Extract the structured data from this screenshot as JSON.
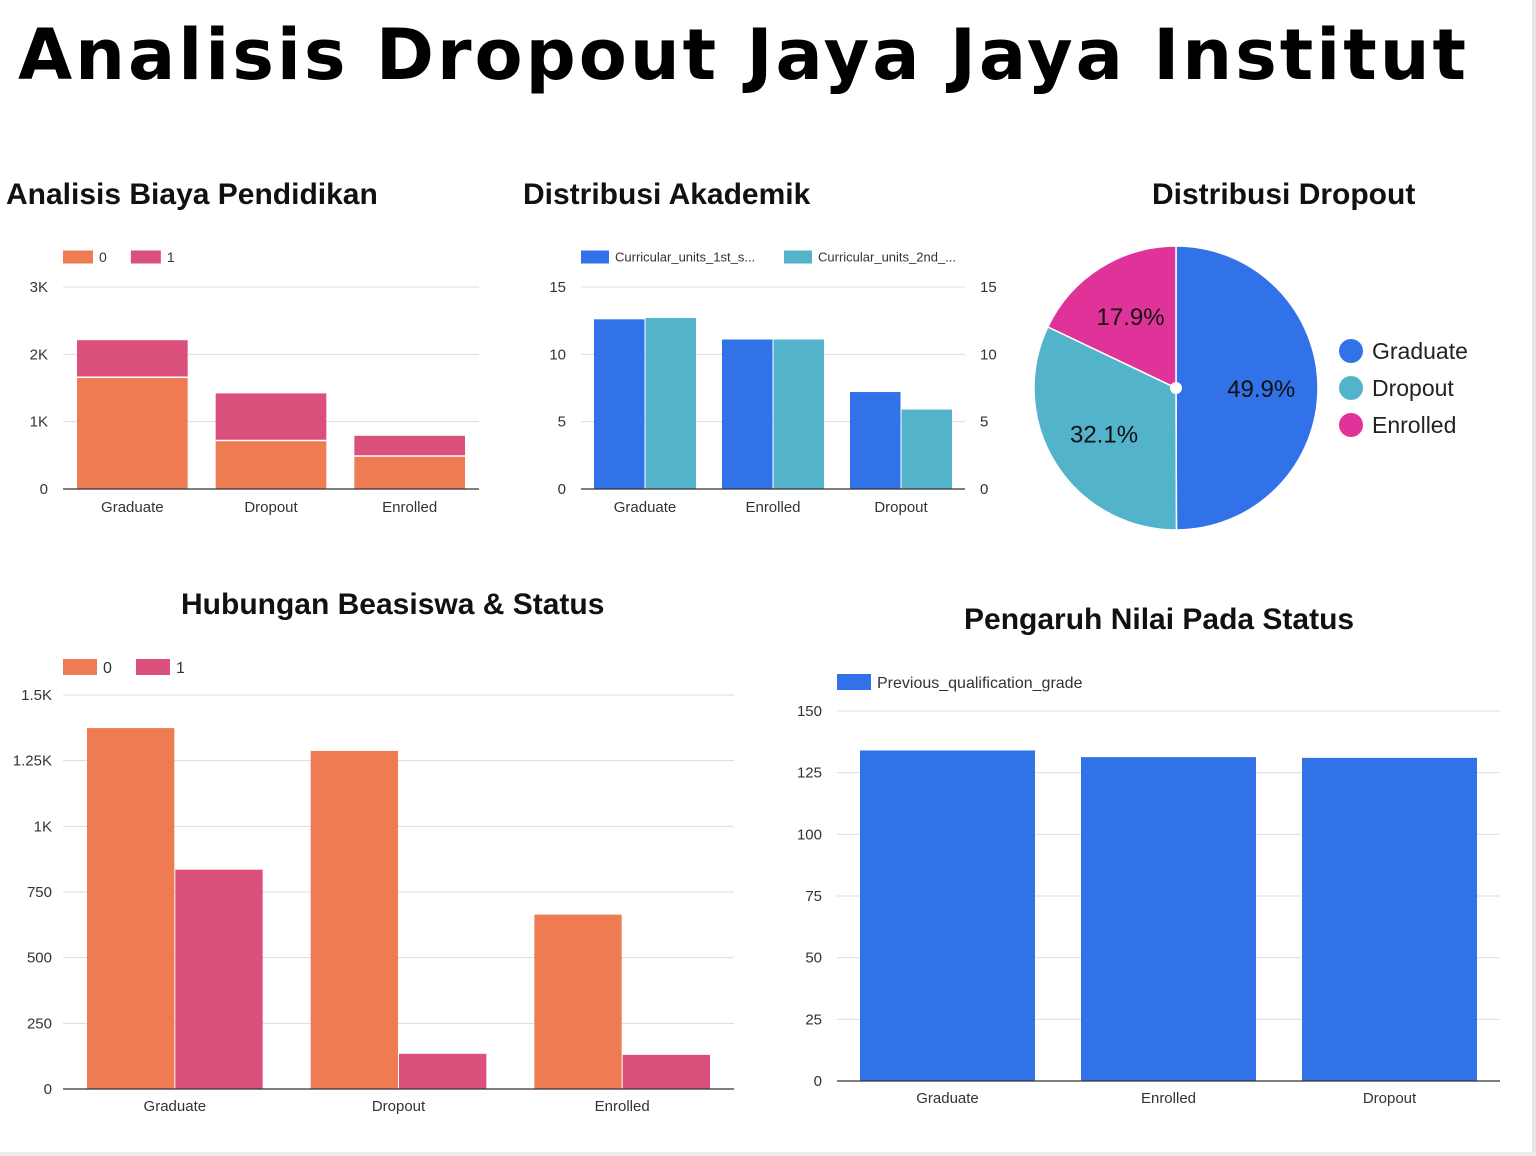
{
  "title": "Analisis Dropout Jaya Jaya Institut",
  "colors": {
    "orange": "#EF7B52",
    "pink": "#DB4F7B",
    "blue": "#3172E8",
    "teal": "#52B3CB",
    "magenta": "#E0339A"
  },
  "chart_data": [
    {
      "id": "biaya",
      "title": "Analisis Biaya Pendidikan",
      "type": "bar",
      "stacked": true,
      "categories": [
        "Graduate",
        "Dropout",
        "Enrolled"
      ],
      "series": [
        {
          "name": "0",
          "values": [
            1660,
            720,
            490
          ]
        },
        {
          "name": "1",
          "values": [
            550,
            700,
            300
          ]
        }
      ],
      "yticks": [
        "0",
        "1K",
        "2K",
        "3K"
      ],
      "ylim": [
        0,
        3000
      ],
      "legend": "top-left",
      "grid": true
    },
    {
      "id": "akademik",
      "title": "Distribusi Akademik",
      "type": "bar",
      "categories": [
        "Graduate",
        "Enrolled",
        "Dropout"
      ],
      "series": [
        {
          "name": "Curricular_units_1st_s...",
          "values": [
            12.6,
            11.1,
            7.2
          ]
        },
        {
          "name": "Curricular_units_2nd_...",
          "values": [
            12.7,
            11.1,
            5.9
          ]
        }
      ],
      "yticks": [
        "0",
        "5",
        "10",
        "15"
      ],
      "yticks_right": [
        "0",
        "5",
        "10",
        "15"
      ],
      "ylim": [
        0,
        15
      ],
      "legend": "top-left",
      "grid": true
    },
    {
      "id": "dropout",
      "title": "Distribusi Dropout",
      "type": "pie",
      "labels": [
        "Graduate",
        "Dropout",
        "Enrolled"
      ],
      "values": [
        49.9,
        32.1,
        17.9
      ],
      "value_labels": [
        "49.9%",
        "32.1%",
        "17.9%"
      ],
      "legend": "right"
    },
    {
      "id": "beasiswa",
      "title": "Hubungan Beasiswa & Status",
      "type": "bar",
      "categories": [
        "Graduate",
        "Dropout",
        "Enrolled"
      ],
      "series": [
        {
          "name": "0",
          "values": [
            1374,
            1287,
            664
          ]
        },
        {
          "name": "1",
          "values": [
            835,
            134,
            130
          ]
        }
      ],
      "yticks": [
        "0",
        "250",
        "500",
        "750",
        "1K",
        "1.25K",
        "1.5K"
      ],
      "ylim": [
        0,
        1500
      ],
      "legend": "top-left",
      "grid": true
    },
    {
      "id": "nilai",
      "title": "Pengaruh Nilai Pada Status",
      "type": "bar",
      "categories": [
        "Graduate",
        "Enrolled",
        "Dropout"
      ],
      "series": [
        {
          "name": "Previous_qualification_grade",
          "values": [
            134.0,
            131.3,
            131.0
          ]
        }
      ],
      "yticks": [
        "0",
        "25",
        "50",
        "75",
        "100",
        "125",
        "150"
      ],
      "ylim": [
        0,
        150
      ],
      "legend": "top-left",
      "grid": true
    }
  ]
}
